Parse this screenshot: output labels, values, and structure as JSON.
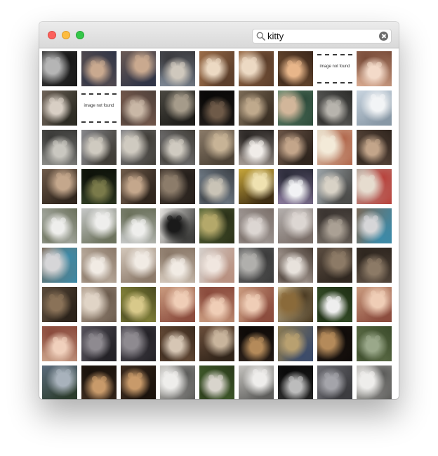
{
  "window": {
    "traffic_lights": {
      "close": "#fc605c",
      "minimize": "#fdbc40",
      "maximize": "#34c749"
    }
  },
  "search": {
    "value": "kitty",
    "icon": "search-icon",
    "clear_icon": "clear-icon"
  },
  "not_found_text": "image not found",
  "thumbnails": [
    {
      "bg": "#3f3f3f",
      "fg": "#b5b5b5",
      "dark": "#161616"
    },
    {
      "bg": "#6a5a55",
      "fg": "#c9a98f",
      "dark": "#2e3346"
    },
    {
      "bg": "#6a5a55",
      "fg": "#c9a98f",
      "dark": "#2e3346"
    },
    {
      "bg": "#7d8794",
      "fg": "#cfc8bd",
      "dark": "#3a3a3e"
    },
    {
      "bg": "#9a6c48",
      "fg": "#ecd9c3",
      "dark": "#5a3d2a"
    },
    {
      "bg": "#9a6c48",
      "fg": "#ecd9c3",
      "dark": "#5a3d2a"
    },
    {
      "bg": "#7a5637",
      "fg": "#e8b68a",
      "dark": "#3a261a"
    },
    {
      "nf": true
    },
    {
      "bg": "#d7a88e",
      "fg": "#f3dac9",
      "dark": "#7a4d3a"
    },
    {
      "bg": "#6e6358",
      "fg": "#d8cfc4",
      "dark": "#2b2a22"
    },
    {
      "nf": true
    },
    {
      "bg": "#8a6656",
      "fg": "#c9b7a6",
      "dark": "#4e403a"
    },
    {
      "bg": "#4a4841",
      "fg": "#a59b8a",
      "dark": "#1c1b18"
    },
    {
      "bg": "#1e1a17",
      "fg": "#6e5a48",
      "dark": "#0a0908"
    },
    {
      "bg": "#7a6a55",
      "fg": "#bfa98c",
      "dark": "#3a2f23"
    },
    {
      "bg": "#6a8a70",
      "fg": "#d2b69a",
      "dark": "#2c4a3a"
    },
    {
      "bg": "#6f6f6c",
      "fg": "#b7b4ad",
      "dark": "#2a2a28"
    },
    {
      "bg": "#c7d3de",
      "fg": "#f2f4f6",
      "dark": "#8696a4"
    },
    {
      "bg": "#8a8a86",
      "fg": "#c9c7c0",
      "dark": "#3a3a38"
    },
    {
      "bg": "#86868a",
      "fg": "#cfcac0",
      "dark": "#3f3c36"
    },
    {
      "bg": "#86868a",
      "fg": "#cfcac0",
      "dark": "#3f3c36"
    },
    {
      "bg": "#86868a",
      "fg": "#cfcac0",
      "dark": "#3f3c36"
    },
    {
      "bg": "#8a7a68",
      "fg": "#c7b396",
      "dark": "#4a4034"
    },
    {
      "bg": "#a69c95",
      "fg": "#f0ece8",
      "dark": "#2a2624"
    },
    {
      "bg": "#6a5446",
      "fg": "#c3a58a",
      "dark": "#2e241d"
    },
    {
      "bg": "#e6dcc8",
      "fg": "#f3ead8",
      "dark": "#b0654a"
    },
    {
      "bg": "#6a5446",
      "fg": "#c3a58a",
      "dark": "#2e241d"
    },
    {
      "bg": "#6e5a49",
      "fg": "#c4a78c",
      "dark": "#2e241c"
    },
    {
      "bg": "#2e3a22",
      "fg": "#7a7a4a",
      "dark": "#0e120a"
    },
    {
      "bg": "#6e5a49",
      "fg": "#c4a78c",
      "dark": "#2e241c"
    },
    {
      "bg": "#4a3e35",
      "fg": "#8c7c6a",
      "dark": "#241e1a"
    },
    {
      "bg": "#8c9aa8",
      "fg": "#c9c3b6",
      "dark": "#3a3f44"
    },
    {
      "bg": "#c6a53a",
      "fg": "#efe1b0",
      "dark": "#3a2a12"
    },
    {
      "bg": "#8a7a9c",
      "fg": "#f1f2f4",
      "dark": "#2c2c3a"
    },
    {
      "bg": "#9aa2a6",
      "fg": "#d8d2c6",
      "dark": "#4a4a48"
    },
    {
      "bg": "#b7aaa0",
      "fg": "#e6dccf",
      "dark": "#b8403a"
    },
    {
      "bg": "#c5c7c6",
      "fg": "#eeeeec",
      "dark": "#6a705a"
    },
    {
      "bg": "#c5c7c6",
      "fg": "#eeeeec",
      "dark": "#6a705a"
    },
    {
      "bg": "#c5c7c6",
      "fg": "#eeeeec",
      "dark": "#6a705a"
    },
    {
      "bg": "#e4e2de",
      "fg": "#1a1a1a",
      "dark": "#3a3a38"
    },
    {
      "bg": "#5a6a3a",
      "fg": "#b4a86a",
      "dark": "#2a3018"
    },
    {
      "bg": "#b3aeac",
      "fg": "#dcd6d2",
      "dark": "#7a6e68"
    },
    {
      "bg": "#b3aeac",
      "fg": "#dcd6d2",
      "dark": "#7a6e68"
    },
    {
      "bg": "#6e665e",
      "fg": "#aaa094",
      "dark": "#3a3430"
    },
    {
      "bg": "#7a6a5a",
      "fg": "#d6d6d8",
      "dark": "#3c8aa8"
    },
    {
      "bg": "#7a6a5a",
      "fg": "#d6d6d8",
      "dark": "#3c8aa8"
    },
    {
      "bg": "#d3c7ba",
      "fg": "#f1ebe4",
      "dark": "#8a7868"
    },
    {
      "bg": "#d3c7ba",
      "fg": "#f1ebe4",
      "dark": "#8a7868"
    },
    {
      "bg": "#d3c7ba",
      "fg": "#f1ebe4",
      "dark": "#8a7868"
    },
    {
      "bg": "#d5cfca",
      "fg": "#f0e6df",
      "dark": "#b89080"
    },
    {
      "bg": "#6a6a6a",
      "fg": "#b0afac",
      "dark": "#3a3a3a"
    },
    {
      "bg": "#cfc4bd",
      "fg": "#e8e2dc",
      "dark": "#4a3e36"
    },
    {
      "bg": "#5a4c40",
      "fg": "#8c7a66",
      "dark": "#2e261f"
    },
    {
      "bg": "#5a4c40",
      "fg": "#8c7a66",
      "dark": "#2e261f"
    },
    {
      "bg": "#5a4a3a",
      "fg": "#8a7258",
      "dark": "#2a221a"
    },
    {
      "bg": "#b8a796",
      "fg": "#e0d4c6",
      "dark": "#6a5a4c"
    },
    {
      "bg": "#a6a44a",
      "fg": "#d8c98a",
      "dark": "#4a4a20"
    },
    {
      "bg": "#c99a7e",
      "fg": "#efcdb6",
      "dark": "#8a4a3c"
    },
    {
      "bg": "#c99a7e",
      "fg": "#efcdb6",
      "dark": "#8a4a3c"
    },
    {
      "bg": "#c99a7e",
      "fg": "#efcdb6",
      "dark": "#8a4a3c"
    },
    {
      "bg": "#d2c39e",
      "fg": "#8a6a3a",
      "dark": "#4a3a22"
    },
    {
      "bg": "#3e5a2e",
      "fg": "#eeeeee",
      "dark": "#1e2e14"
    },
    {
      "bg": "#c99a7e",
      "fg": "#efcdb6",
      "dark": "#8a4a3c"
    },
    {
      "bg": "#c9a088",
      "fg": "#f0d0bc",
      "dark": "#8a4a3c"
    },
    {
      "bg": "#55515a",
      "fg": "#8e8a90",
      "dark": "#232126"
    },
    {
      "bg": "#55515a",
      "fg": "#8e8a90",
      "dark": "#232126"
    },
    {
      "bg": "#7a5a42",
      "fg": "#d6c6b4",
      "dark": "#3a2a1e"
    },
    {
      "bg": "#6a4e3a",
      "fg": "#c8b49c",
      "dark": "#2e2218"
    },
    {
      "bg": "#2a1f18",
      "fg": "#b48a5a",
      "dark": "#0e0a08"
    },
    {
      "bg": "#8a7a52",
      "fg": "#b8a070",
      "dark": "#3a4a6a"
    },
    {
      "bg": "#2a1f18",
      "fg": "#b48a5a",
      "dark": "#0e0a08"
    },
    {
      "bg": "#6a7a52",
      "fg": "#9aa88a",
      "dark": "#3a4a2a"
    },
    {
      "bg": "#5a6a7a",
      "fg": "#a8b2bc",
      "dark": "#2a3a2a"
    },
    {
      "bg": "#3a2a1e",
      "fg": "#c89a6a",
      "dark": "#1a120c"
    },
    {
      "bg": "#3a2a1e",
      "fg": "#c89a6a",
      "dark": "#1a120c"
    },
    {
      "bg": "#c4c2be",
      "fg": "#eeedeb",
      "dark": "#5a5a58"
    },
    {
      "bg": "#4a6a32",
      "fg": "#d8d4cc",
      "dark": "#2a3a1a"
    },
    {
      "bg": "#c4c2be",
      "fg": "#eeedeb",
      "dark": "#5a5a58"
    },
    {
      "bg": "#2a2a2a",
      "fg": "#bcbcbc",
      "dark": "#0a0a0a"
    },
    {
      "bg": "#6a6a70",
      "fg": "#a4a4aa",
      "dark": "#3a3a3e"
    },
    {
      "bg": "#c4c2be",
      "fg": "#eeedeb",
      "dark": "#5a5a58"
    }
  ]
}
